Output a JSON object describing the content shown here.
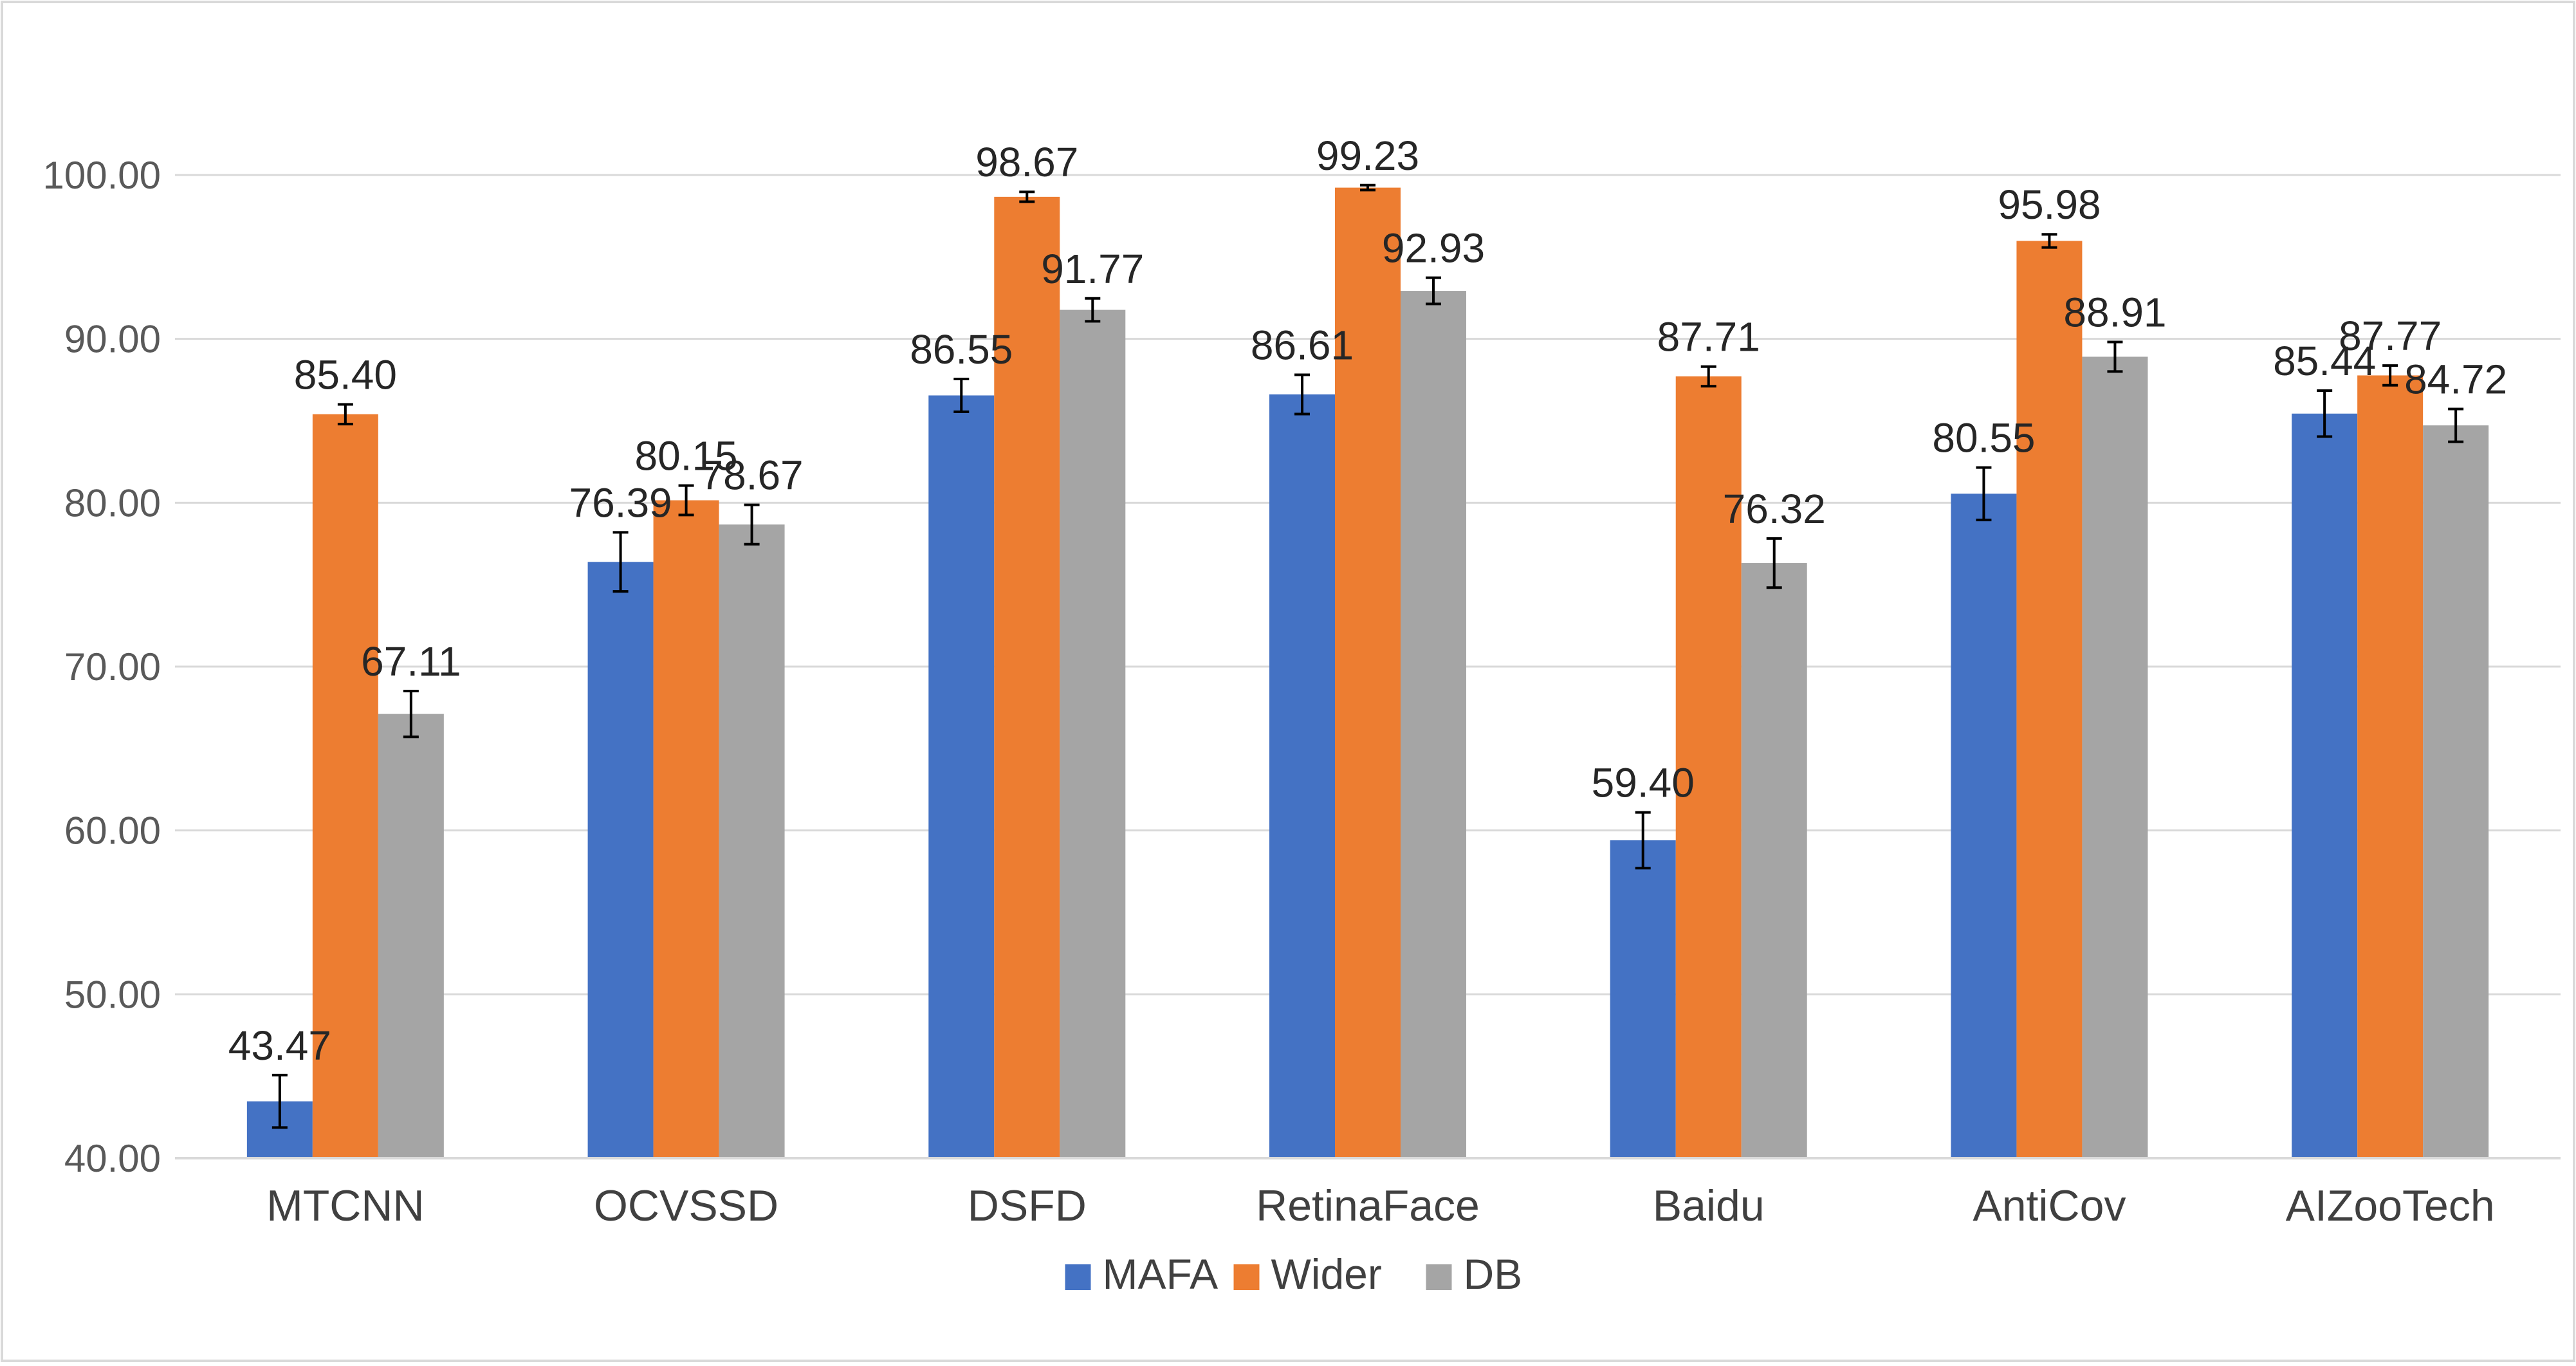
{
  "chart_data": {
    "type": "bar",
    "title": "",
    "xlabel": "",
    "ylabel": "",
    "ylim": [
      40,
      100
    ],
    "yticks": [
      40,
      50,
      60,
      70,
      80,
      90,
      100
    ],
    "ytick_labels": [
      "40.00",
      "50.00",
      "60.00",
      "70.00",
      "80.00",
      "90.00",
      "100.00"
    ],
    "grid": true,
    "legend_position": "bottom",
    "categories": [
      "MTCNN",
      "OCVSSD",
      "DSFD",
      "RetinaFace",
      "Baidu",
      "AntiCov",
      "AIZooTech"
    ],
    "series": [
      {
        "name": "MAFA",
        "color": "#4472C4",
        "values": [
          43.47,
          76.39,
          86.55,
          86.61,
          59.4,
          80.55,
          85.44
        ],
        "labels": [
          "43.47",
          "76.39",
          "86.55",
          "86.61",
          "59.40",
          "80.55",
          "85.44"
        ],
        "errors": [
          1.6,
          1.8,
          1.0,
          1.2,
          1.7,
          1.6,
          1.4
        ]
      },
      {
        "name": "Wider",
        "color": "#ED7D31",
        "values": [
          85.4,
          80.15,
          98.67,
          99.23,
          87.71,
          95.98,
          87.77
        ],
        "labels": [
          "85.40",
          "80.15",
          "98.67",
          "99.23",
          "87.71",
          "95.98",
          "87.77"
        ],
        "errors": [
          0.6,
          0.9,
          0.3,
          0.15,
          0.6,
          0.4,
          0.6
        ]
      },
      {
        "name": "DB",
        "color": "#A5A5A5",
        "values": [
          67.11,
          78.67,
          91.77,
          92.93,
          76.32,
          88.91,
          84.72
        ],
        "labels": [
          "67.11",
          "78.67",
          "91.77",
          "92.93",
          "76.32",
          "88.91",
          "84.72"
        ],
        "errors": [
          1.4,
          1.2,
          0.7,
          0.8,
          1.5,
          0.9,
          1.0
        ]
      }
    ]
  }
}
